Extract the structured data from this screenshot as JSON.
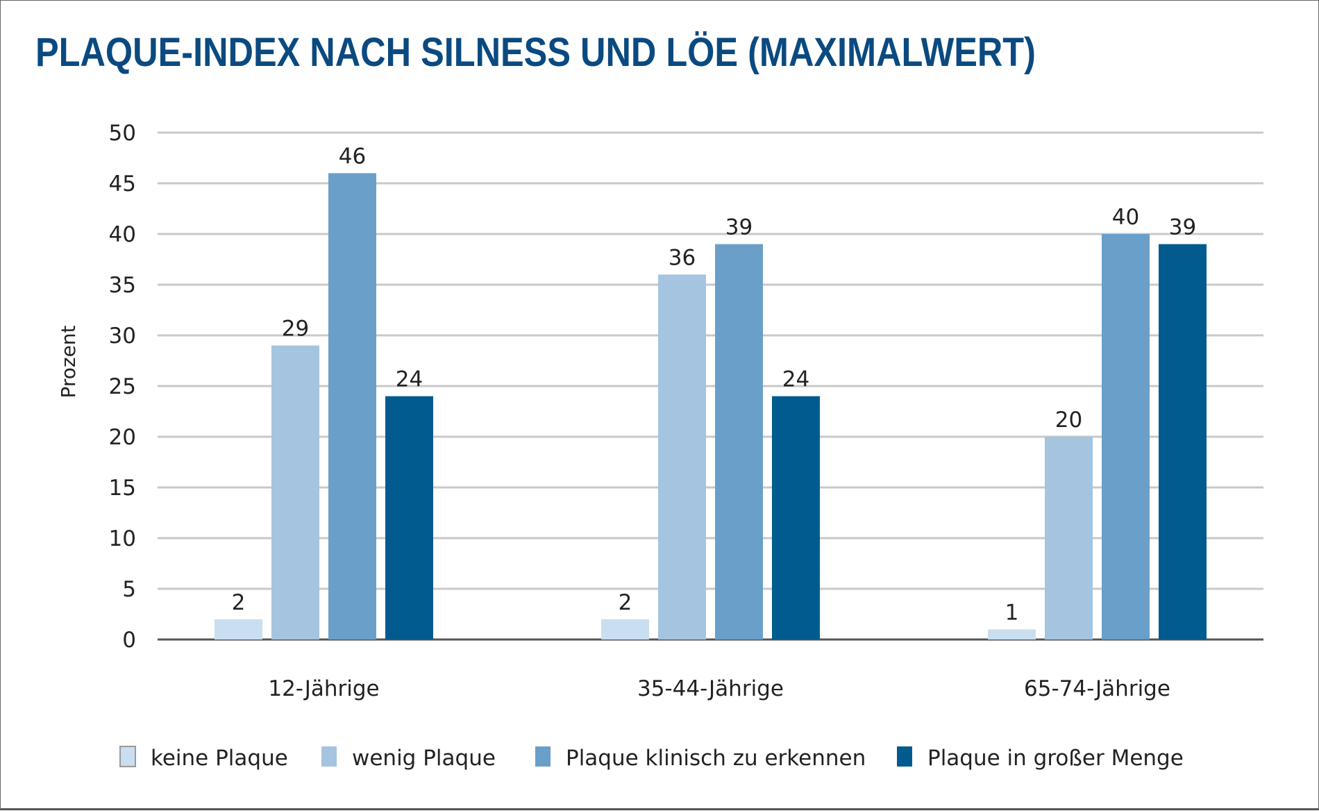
{
  "chart_data": {
    "type": "bar",
    "title": "PLAQUE-INDEX NACH SILNESS UND LÖE (MAXIMALWERT)",
    "xlabel": "",
    "ylabel": "Prozent",
    "ylim": [
      0,
      50
    ],
    "yticks": [
      0,
      5,
      10,
      15,
      20,
      25,
      30,
      35,
      40,
      45,
      50
    ],
    "grid": true,
    "legend_position": "bottom",
    "categories": [
      "12-Jährige",
      "35-44-Jährige",
      "65-74-Jährige"
    ],
    "series": [
      {
        "name": "keine Plaque",
        "color": "#c9def0",
        "values": [
          2,
          2,
          1
        ]
      },
      {
        "name": "wenig Plaque",
        "color": "#a5c4e0",
        "values": [
          29,
          36,
          20
        ]
      },
      {
        "name": "Plaque klinisch zu erkennen",
        "color": "#6a9fc9",
        "values": [
          46,
          39,
          40
        ]
      },
      {
        "name": "Plaque in großer Menge",
        "color": "#025b8f",
        "values": [
          24,
          24,
          39
        ]
      }
    ]
  }
}
